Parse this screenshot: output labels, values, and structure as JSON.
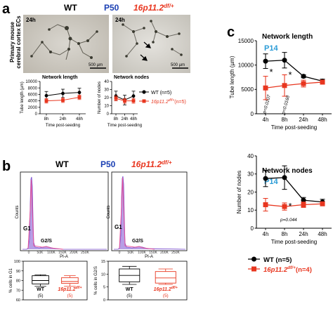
{
  "panel_a": {
    "letter": "a",
    "wt_label": "WT",
    "p50_label": "P50",
    "mut_label": "16p11.2",
    "mut_sup": "df/+",
    "time_label": "24h",
    "scale_bar": "500 µm",
    "side_label_1": "Primary mouse",
    "side_label_2": "cerebral cortex ECs",
    "legend_wt": "WT (n=5)",
    "legend_mut": "16p11.2",
    "legend_mut_sup": "df/+",
    "legend_mut_n": "(n=5)",
    "xlabel": "Time post-seeding"
  },
  "panel_b": {
    "letter": "b",
    "wt_label": "WT",
    "p50_label": "P50",
    "mut_label": "16p11.2",
    "mut_sup": "df/+",
    "counts_label": "Counts",
    "xlabel": "PI-A",
    "g1_label": "G1",
    "g2s_label": "G2/S",
    "ylabel_g1": "% cells in G1",
    "ylabel_g2": "% cells in G2/S",
    "wt_n": "(5)",
    "mut_n": "(5)"
  },
  "panel_c": {
    "letter": "c",
    "title_1": "Network length",
    "title_2": "Network nodes",
    "p14_label": "P14",
    "xlabel": "Time post-seeding",
    "p1": "p=0.0107",
    "p2": "p=0.0168",
    "p3": "p=0.044",
    "star": "*",
    "legend_wt": "WT (n=5)",
    "legend_mut": "16p11.2",
    "legend_mut_sup": "df/+",
    "legend_mut_n": "(n=4)"
  },
  "colors": {
    "wt": "#000000",
    "mut": "#e8361f",
    "p50": "#1a3fb3",
    "p14": "#2a9bd6",
    "hist": "#7b4fd0",
    "fit": "#e7549a"
  },
  "chart_data": [
    {
      "id": "a_length",
      "type": "line",
      "title": "Network length",
      "xlabel": "Time post-seeding",
      "ylabel": "Tube length (µm)",
      "categories": [
        "8h",
        "24h",
        "48h"
      ],
      "ylim": [
        0,
        10000
      ],
      "yticks": [
        0,
        2000,
        4000,
        6000,
        8000,
        10000
      ],
      "series": [
        {
          "name": "WT (n=5)",
          "values": [
            5600,
            6300,
            6600
          ],
          "err": [
            1300,
            1300,
            1300
          ]
        },
        {
          "name": "16p11.2 df/+ (n=5)",
          "values": [
            4000,
            4200,
            5100
          ],
          "err": [
            700,
            700,
            700
          ]
        }
      ]
    },
    {
      "id": "a_nodes",
      "type": "line",
      "title": "Network nodes",
      "xlabel": "Time post-seeding",
      "ylabel": "Number of nodes",
      "categories": [
        "8h",
        "24h",
        "48h"
      ],
      "ylim": [
        0,
        40
      ],
      "yticks": [
        0,
        10,
        20,
        30,
        40
      ],
      "series": [
        {
          "name": "WT (n=5)",
          "values": [
            22,
            17,
            22
          ],
          "err": [
            6,
            6,
            6
          ]
        },
        {
          "name": "16p11.2 df/+ (n=5)",
          "values": [
            19,
            16,
            16
          ],
          "err": [
            3,
            3,
            3
          ]
        }
      ]
    },
    {
      "id": "b_boxes_g1",
      "type": "box",
      "ylabel": "% cells in G1",
      "categories": [
        "WT",
        "16p11.2 df/+"
      ],
      "ylim": [
        60,
        100
      ],
      "yticks": [
        60,
        70,
        80,
        90,
        100
      ],
      "boxes": [
        {
          "min": 74,
          "q1": 76.5,
          "median": 80,
          "q3": 85,
          "max": 86
        },
        {
          "min": 74,
          "q1": 77,
          "median": 79,
          "q3": 83,
          "max": 85
        }
      ]
    },
    {
      "id": "b_boxes_g2",
      "type": "box",
      "ylabel": "% cells in G2/S",
      "categories": [
        "WT",
        "16p11.2 df/+"
      ],
      "ylim": [
        0,
        15
      ],
      "yticks": [
        0,
        5,
        10,
        15
      ],
      "boxes": [
        {
          "min": 6,
          "q1": 7,
          "median": 9.5,
          "q3": 12,
          "max": 13
        },
        {
          "min": 6,
          "q1": 6.5,
          "median": 8.5,
          "q3": 11,
          "max": 12
        }
      ]
    },
    {
      "id": "c_length",
      "type": "line",
      "title": "Network length",
      "xlabel": "Time post-seeding",
      "ylabel": "Tube length (µm)",
      "categories": [
        "4h",
        "8h",
        "24h",
        "48h"
      ],
      "ylim": [
        0,
        15000
      ],
      "yticks": [
        0,
        5000,
        10000,
        15000
      ],
      "series": [
        {
          "name": "WT (n=5)",
          "values": [
            10800,
            11000,
            7700,
            6700
          ],
          "err": [
            1500,
            1600,
            300,
            400
          ]
        },
        {
          "name": "16p11.2 df/+ (n=4)",
          "values": [
            5300,
            5800,
            6200,
            6500
          ],
          "err": [
            2400,
            2200,
            700,
            400
          ]
        }
      ]
    },
    {
      "id": "c_nodes",
      "type": "line",
      "title": "Network nodes",
      "xlabel": "Time post-seeding",
      "ylabel": "Number of nodes",
      "categories": [
        "4h",
        "8h",
        "24h",
        "48h"
      ],
      "ylim": [
        0,
        40
      ],
      "yticks": [
        0,
        10,
        20,
        30,
        40
      ],
      "series": [
        {
          "name": "WT (n=5)",
          "values": [
            27.5,
            28,
            15.5,
            14.5
          ],
          "err": [
            4.5,
            6.5,
            1.5,
            1.5
          ]
        },
        {
          "name": "16p11.2 df/+ (n=4)",
          "values": [
            13,
            12,
            13,
            13.5
          ],
          "err": [
            3.5,
            2,
            1.5,
            1
          ]
        }
      ]
    }
  ]
}
